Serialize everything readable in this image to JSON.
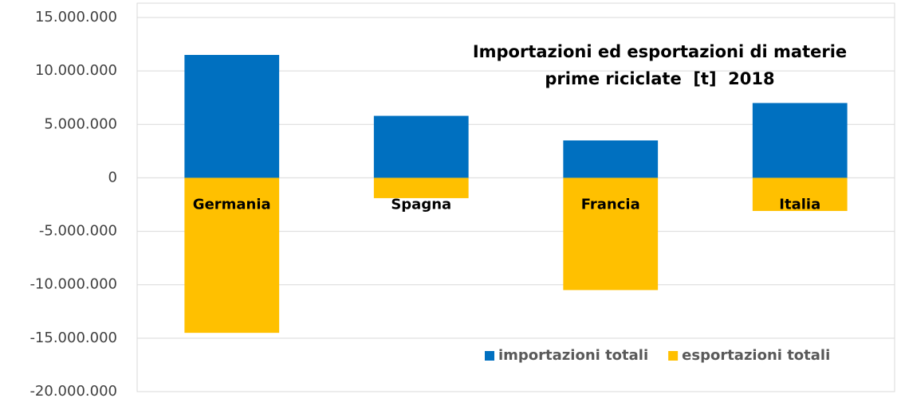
{
  "chart_data": {
    "type": "bar",
    "title": "Importazioni ed esportazioni di materie prime riciclate  [t]  2018",
    "categories": [
      "Germania",
      "Spagna",
      "Francia",
      "Italia"
    ],
    "series": [
      {
        "name": "importazioni totali",
        "color": "#0070c0",
        "values": [
          11500000,
          5800000,
          3500000,
          7000000
        ]
      },
      {
        "name": "esportazioni totali",
        "color": "#ffc000",
        "values": [
          -14500000,
          -1900000,
          -10500000,
          -3100000
        ]
      }
    ],
    "ylim": [
      -20000000,
      15000000
    ],
    "yticks": [
      {
        "value": -20000000,
        "label": "-20.000.000"
      },
      {
        "value": -15000000,
        "label": "-15.000.000"
      },
      {
        "value": -10000000,
        "label": "-10.000.000"
      },
      {
        "value": -5000000,
        "label": "-5.000.000"
      },
      0,
      {
        "value": 5000000,
        "label": "5.000.000"
      },
      {
        "value": 10000000,
        "label": "10.000.000"
      },
      {
        "value": 15000000,
        "label": "15.000.000"
      }
    ],
    "grid": true,
    "legend": "lower right"
  }
}
